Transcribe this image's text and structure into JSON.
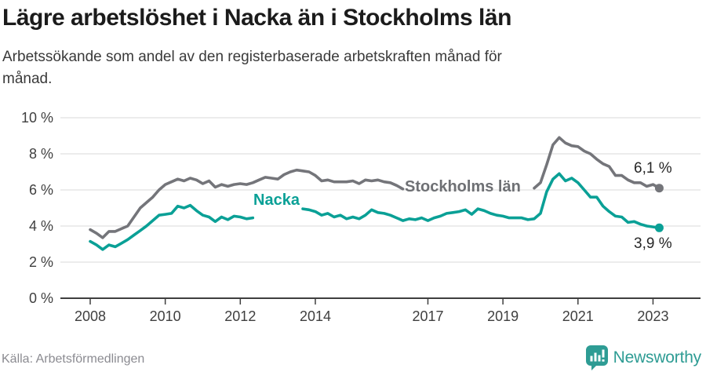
{
  "header": {
    "title": "Lägre arbetslöshet i Nacka än i Stockholms län",
    "subtitle_lines": [
      "Arbetssökande som andel av den registerbaserade arbetskraften månad för",
      "månad."
    ]
  },
  "chart_data": {
    "type": "line",
    "title": "Lägre arbetslöshet i Nacka än i Stockholms län",
    "subtitle": "Arbetssökande som andel av den registerbaserade arbetskraften månad för månad.",
    "unit": "%",
    "grid": "horizontal-only",
    "legend": "inline-line-labels",
    "x_start_year": 2008.0,
    "x_step_years": 0.166667,
    "x_end_year": 2023.17,
    "x_axis": {
      "tick_years": [
        2008,
        2010,
        2012,
        2014,
        2017,
        2019,
        2021,
        2023
      ],
      "tick_labels": [
        "2008",
        "2010",
        "2012",
        "2014",
        "2017",
        "2019",
        "2021",
        "2023"
      ]
    },
    "y_axis": {
      "range": [
        0,
        10
      ],
      "ticks": [
        {
          "value": 0,
          "label": "0 %"
        },
        {
          "value": 2,
          "label": "2 %"
        },
        {
          "value": 4,
          "label": "4 %"
        },
        {
          "value": 6,
          "label": "6 %"
        },
        {
          "value": 8,
          "label": "8 %"
        },
        {
          "value": 10,
          "label": "10 %"
        }
      ]
    },
    "note": "null values are segments hidden behind the inline series labels",
    "series": [
      {
        "name": "Stockholms län",
        "color": "#74757a",
        "end_label": "6,1 %",
        "end_value": 6.1,
        "values": [
          3.8,
          3.6,
          3.35,
          3.7,
          3.7,
          3.85,
          4.0,
          4.5,
          5.0,
          5.3,
          5.6,
          6.0,
          6.3,
          6.45,
          6.6,
          6.5,
          6.65,
          6.55,
          6.35,
          6.5,
          6.15,
          6.3,
          6.2,
          6.3,
          6.35,
          6.3,
          6.4,
          6.55,
          6.7,
          6.65,
          6.6,
          6.85,
          7.0,
          7.1,
          7.05,
          7.0,
          6.8,
          6.5,
          6.55,
          6.45,
          6.45,
          6.45,
          6.5,
          6.35,
          6.55,
          6.5,
          6.55,
          6.45,
          6.4,
          6.25,
          6.05,
          null,
          null,
          null,
          null,
          null,
          null,
          null,
          null,
          null,
          null,
          null,
          null,
          null,
          null,
          null,
          null,
          null,
          null,
          null,
          null,
          6.1,
          6.4,
          7.4,
          8.5,
          8.9,
          8.6,
          8.45,
          8.4,
          8.15,
          8.0,
          7.7,
          7.45,
          7.3,
          6.8,
          6.8,
          6.55,
          6.4,
          6.4,
          6.2,
          6.3,
          6.1
        ]
      },
      {
        "name": "Nacka",
        "color": "#0aa096",
        "end_label": "3,9 %",
        "end_value": 3.9,
        "values": [
          3.15,
          2.95,
          2.7,
          2.95,
          2.85,
          3.05,
          3.25,
          3.5,
          3.75,
          4.0,
          4.3,
          4.6,
          4.65,
          4.7,
          5.1,
          5.0,
          5.15,
          4.85,
          4.6,
          4.5,
          4.25,
          4.5,
          4.35,
          4.55,
          4.5,
          4.4,
          4.45,
          null,
          null,
          null,
          null,
          null,
          null,
          null,
          4.95,
          4.9,
          4.8,
          4.6,
          4.7,
          4.5,
          4.6,
          4.4,
          4.5,
          4.4,
          4.6,
          4.9,
          4.75,
          4.7,
          4.6,
          4.45,
          4.3,
          4.4,
          4.35,
          4.45,
          4.3,
          4.45,
          4.55,
          4.7,
          4.75,
          4.8,
          4.9,
          4.65,
          4.95,
          4.85,
          4.7,
          4.6,
          4.55,
          4.45,
          4.45,
          4.45,
          4.35,
          4.4,
          4.7,
          5.9,
          6.6,
          6.9,
          6.5,
          6.65,
          6.4,
          6.0,
          5.6,
          5.6,
          5.1,
          4.8,
          4.55,
          4.5,
          4.2,
          4.25,
          4.1,
          4.0,
          3.95,
          3.9
        ]
      }
    ],
    "style": {
      "gridline_color": "#d8d8d8",
      "axis_color": "#3f3f3f",
      "tick_label_color": "#3f3f3f",
      "end_dot_radius": 5.5
    }
  },
  "footer": {
    "source": "Källa: Arbetsförmedlingen",
    "brand": "Newsworthy",
    "brand_color": "#2e9c94"
  }
}
